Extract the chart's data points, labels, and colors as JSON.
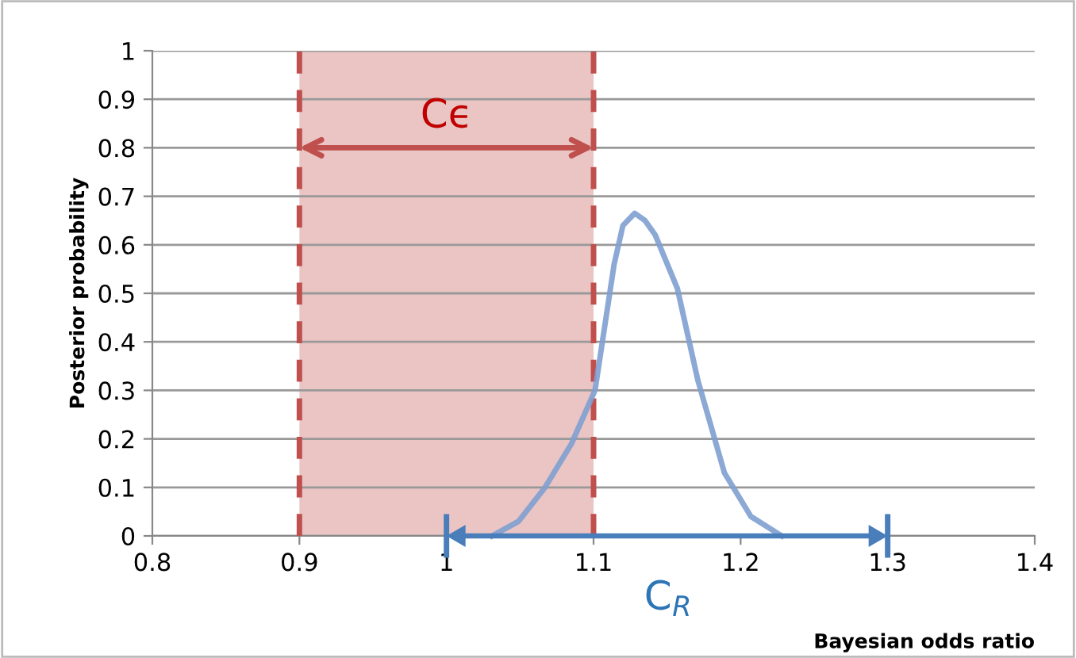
{
  "chart_data": {
    "type": "line",
    "xlabel": "Bayesian odds ratio",
    "ylabel": "Posterior probability",
    "series": [
      {
        "color": "#7f9fd0",
        "x": [
          1.031,
          1.049,
          1.067,
          1.085,
          1.101,
          1.114,
          1.12,
          1.128,
          1.135,
          1.142,
          1.157,
          1.171,
          1.189,
          1.207,
          1.228
        ],
        "values": [
          0,
          0.03,
          0.1,
          0.19,
          0.3,
          0.56,
          0.64,
          0.665,
          0.65,
          0.62,
          0.51,
          0.32,
          0.13,
          0.04,
          0
        ]
      }
    ],
    "bands": [
      {
        "axis": "x",
        "from": 0.9,
        "to": 1.1,
        "label": "Cϵ",
        "color": "#c0504d"
      }
    ],
    "ref_lines": [
      {
        "axis": "x",
        "value": 0.9,
        "color": "#c0504d",
        "line_style": "dashed"
      },
      {
        "axis": "x",
        "value": 1.1,
        "color": "#c0504d",
        "line_style": "dashed"
      }
    ],
    "annotations": [
      "C$_{R}$"
    ],
    "xlim": [
      0.8,
      1.4
    ],
    "xticks": [
      0.8,
      0.9,
      1,
      1.1,
      1.2,
      1.3,
      1.4
    ],
    "ylim": [
      0,
      1
    ],
    "yticks": [
      0,
      0.1,
      0.2,
      0.3,
      0.4,
      0.5,
      0.6,
      0.7,
      0.8,
      0.9,
      1
    ],
    "grid": "y",
    "marker": "none",
    "line_style": "solid"
  }
}
